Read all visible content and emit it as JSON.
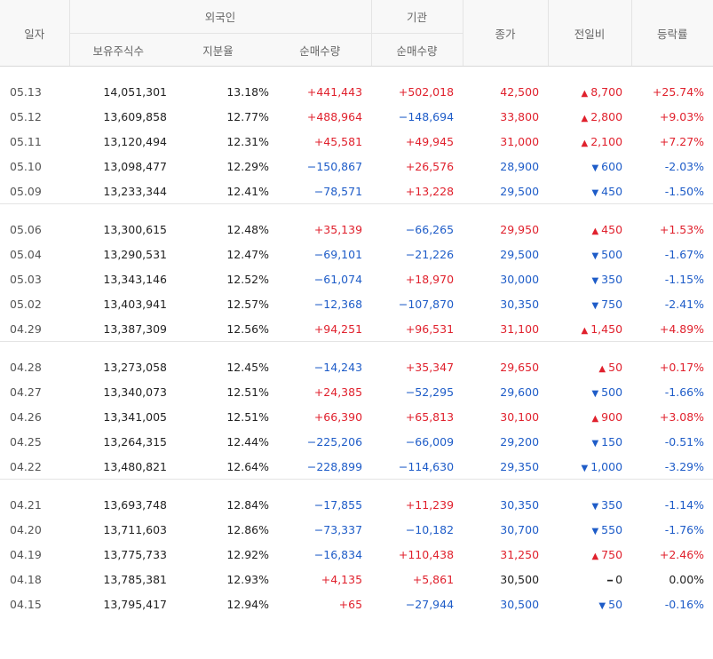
{
  "headers": {
    "date": "일자",
    "foreign_group": "외국인",
    "institution_group": "기관",
    "foreign_shares": "보유주식수",
    "foreign_ratio": "지분율",
    "foreign_net": "순매수량",
    "inst_net": "순매수량",
    "close": "종가",
    "change": "전일비",
    "rate": "등락률"
  },
  "colors": {
    "up": "#e0212d",
    "down": "#1e5cc8",
    "flat": "#222222"
  },
  "groups": [
    [
      {
        "date": "05.13",
        "shares": "14,051,301",
        "ratio": "13.18%",
        "fnet": "+441,443",
        "inet": "+502,018",
        "close": "42,500",
        "dir": "up",
        "chg": "8,700",
        "rate": "+25.74%"
      },
      {
        "date": "05.12",
        "shares": "13,609,858",
        "ratio": "12.77%",
        "fnet": "+488,964",
        "inet": "−148,694",
        "close": "33,800",
        "dir": "up",
        "chg": "2,800",
        "rate": "+9.03%"
      },
      {
        "date": "05.11",
        "shares": "13,120,494",
        "ratio": "12.31%",
        "fnet": "+45,581",
        "inet": "+49,945",
        "close": "31,000",
        "dir": "up",
        "chg": "2,100",
        "rate": "+7.27%"
      },
      {
        "date": "05.10",
        "shares": "13,098,477",
        "ratio": "12.29%",
        "fnet": "−150,867",
        "inet": "+26,576",
        "close": "28,900",
        "dir": "down",
        "chg": "600",
        "rate": "-2.03%"
      },
      {
        "date": "05.09",
        "shares": "13,233,344",
        "ratio": "12.41%",
        "fnet": "−78,571",
        "inet": "+13,228",
        "close": "29,500",
        "dir": "down",
        "chg": "450",
        "rate": "-1.50%"
      }
    ],
    [
      {
        "date": "05.06",
        "shares": "13,300,615",
        "ratio": "12.48%",
        "fnet": "+35,139",
        "inet": "−66,265",
        "close": "29,950",
        "dir": "up",
        "chg": "450",
        "rate": "+1.53%"
      },
      {
        "date": "05.04",
        "shares": "13,290,531",
        "ratio": "12.47%",
        "fnet": "−69,101",
        "inet": "−21,226",
        "close": "29,500",
        "dir": "down",
        "chg": "500",
        "rate": "-1.67%"
      },
      {
        "date": "05.03",
        "shares": "13,343,146",
        "ratio": "12.52%",
        "fnet": "−61,074",
        "inet": "+18,970",
        "close": "30,000",
        "dir": "down",
        "chg": "350",
        "rate": "-1.15%"
      },
      {
        "date": "05.02",
        "shares": "13,403,941",
        "ratio": "12.57%",
        "fnet": "−12,368",
        "inet": "−107,870",
        "close": "30,350",
        "dir": "down",
        "chg": "750",
        "rate": "-2.41%"
      },
      {
        "date": "04.29",
        "shares": "13,387,309",
        "ratio": "12.56%",
        "fnet": "+94,251",
        "inet": "+96,531",
        "close": "31,100",
        "dir": "up",
        "chg": "1,450",
        "rate": "+4.89%"
      }
    ],
    [
      {
        "date": "04.28",
        "shares": "13,273,058",
        "ratio": "12.45%",
        "fnet": "−14,243",
        "inet": "+35,347",
        "close": "29,650",
        "dir": "up",
        "chg": "50",
        "rate": "+0.17%"
      },
      {
        "date": "04.27",
        "shares": "13,340,073",
        "ratio": "12.51%",
        "fnet": "+24,385",
        "inet": "−52,295",
        "close": "29,600",
        "dir": "down",
        "chg": "500",
        "rate": "-1.66%"
      },
      {
        "date": "04.26",
        "shares": "13,341,005",
        "ratio": "12.51%",
        "fnet": "+66,390",
        "inet": "+65,813",
        "close": "30,100",
        "dir": "up",
        "chg": "900",
        "rate": "+3.08%"
      },
      {
        "date": "04.25",
        "shares": "13,264,315",
        "ratio": "12.44%",
        "fnet": "−225,206",
        "inet": "−66,009",
        "close": "29,200",
        "dir": "down",
        "chg": "150",
        "rate": "-0.51%"
      },
      {
        "date": "04.22",
        "shares": "13,480,821",
        "ratio": "12.64%",
        "fnet": "−228,899",
        "inet": "−114,630",
        "close": "29,350",
        "dir": "down",
        "chg": "1,000",
        "rate": "-3.29%"
      }
    ],
    [
      {
        "date": "04.21",
        "shares": "13,693,748",
        "ratio": "12.84%",
        "fnet": "−17,855",
        "inet": "+11,239",
        "close": "30,350",
        "dir": "down",
        "chg": "350",
        "rate": "-1.14%"
      },
      {
        "date": "04.20",
        "shares": "13,711,603",
        "ratio": "12.86%",
        "fnet": "−73,337",
        "inet": "−10,182",
        "close": "30,700",
        "dir": "down",
        "chg": "550",
        "rate": "-1.76%"
      },
      {
        "date": "04.19",
        "shares": "13,775,733",
        "ratio": "12.92%",
        "fnet": "−16,834",
        "inet": "+110,438",
        "close": "31,250",
        "dir": "up",
        "chg": "750",
        "rate": "+2.46%"
      },
      {
        "date": "04.18",
        "shares": "13,785,381",
        "ratio": "12.93%",
        "fnet": "+4,135",
        "inet": "+5,861",
        "close": "30,500",
        "dir": "flat",
        "chg": "0",
        "rate": "0.00%"
      },
      {
        "date": "04.15",
        "shares": "13,795,417",
        "ratio": "12.94%",
        "fnet": "+65",
        "inet": "−27,944",
        "close": "30,500",
        "dir": "down",
        "chg": "50",
        "rate": "-0.16%"
      }
    ]
  ]
}
